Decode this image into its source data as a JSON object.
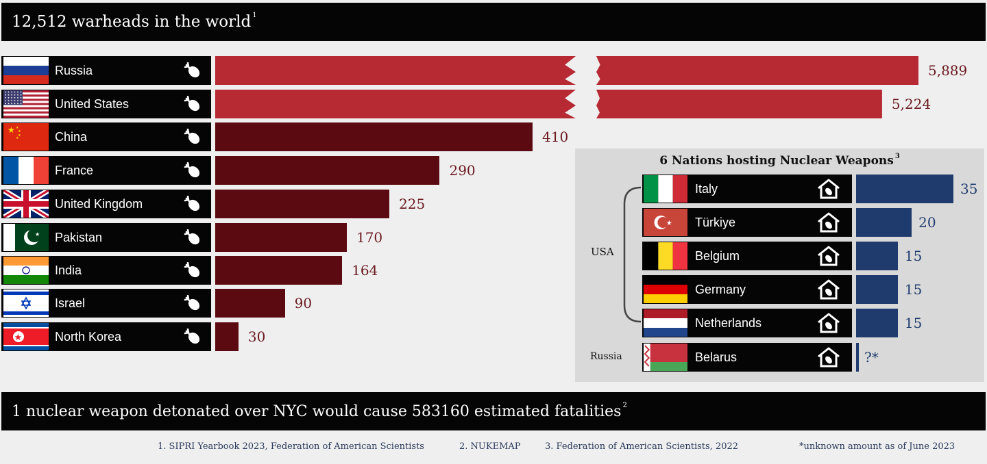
{
  "header": {
    "title": "12,512 warheads in the world",
    "title_note": "1"
  },
  "chart_data": {
    "type": "bar",
    "orientation": "horizontal",
    "axis_break": true,
    "categories": [
      "Russia",
      "United States",
      "China",
      "France",
      "United Kingdom",
      "Pakistan",
      "India",
      "Israel",
      "North Korea"
    ],
    "values": [
      5889,
      5224,
      410,
      290,
      225,
      170,
      164,
      90,
      30
    ],
    "value_labels": [
      "5,889",
      "5,224",
      "410",
      "290",
      "225",
      "170",
      "164",
      "90",
      "30"
    ],
    "colors": {
      "large": "#b72a34",
      "small": "#5b0a12"
    }
  },
  "inset": {
    "title": "6 Nations hosting Nuclear Weapons",
    "title_note": "3",
    "chart_data": {
      "type": "bar",
      "orientation": "horizontal",
      "categories": [
        "Italy",
        "Türkiye",
        "Belgium",
        "Germany",
        "Netherlands",
        "Belarus"
      ],
      "values": [
        35,
        20,
        15,
        15,
        15,
        null
      ],
      "value_labels": [
        "35",
        "20",
        "15",
        "15",
        "15",
        "?*"
      ],
      "color": "#1f3b6e"
    },
    "groups": {
      "usa": "USA",
      "russia": "Russia"
    }
  },
  "footer": {
    "statement": "1 nuclear weapon detonated over NYC would cause 583160 estimated fatalities",
    "statement_note": "2",
    "sources": [
      "1. SIPRI Yearbook 2023, Federation of American Scientists",
      "2. NUKEMAP",
      "3. Federation of American Scientists, 2022",
      "*unknown amount as of June 2023"
    ]
  },
  "icons": {
    "bomb": "bomb-icon",
    "house": "house-icon"
  }
}
